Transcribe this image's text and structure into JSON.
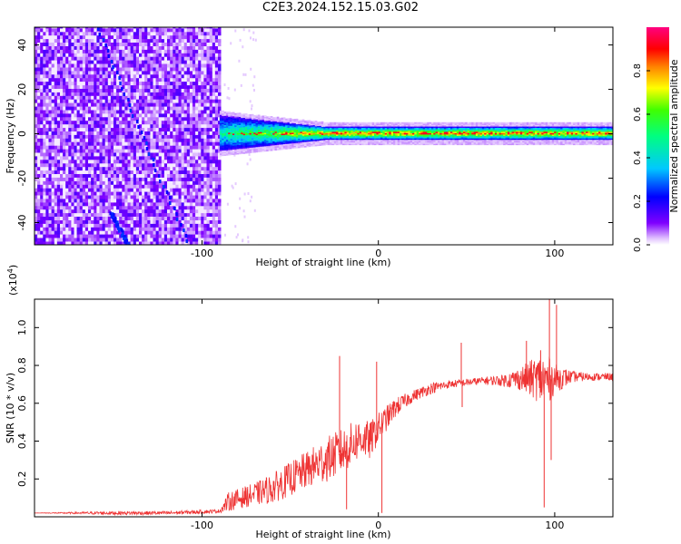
{
  "figure_title": "C2E3.2024.152.15.03.G02",
  "chart_data": [
    {
      "type": "heatmap",
      "title": "C2E3.2024.152.15.03.G02",
      "xlabel": "Height of straight line (km)",
      "ylabel": "Frequency (Hz)",
      "xlim": [
        -195,
        133
      ],
      "ylim": [
        -50,
        48
      ],
      "xticks": [
        -100,
        0,
        100
      ],
      "xtick_labels": [
        "-100",
        "0",
        "100"
      ],
      "yticks": [
        -40,
        -20,
        0,
        20,
        40
      ],
      "ytick_labels": [
        "-40",
        "-20",
        "0",
        "20",
        "40"
      ],
      "colorbar": {
        "label": "Normalized spectral amplitude",
        "range": [
          0,
          1
        ],
        "ticks": [
          0.0,
          0.2,
          0.4,
          0.6,
          0.8
        ],
        "tick_labels": [
          "0.0",
          "0.2",
          "0.4",
          "0.6",
          "0.8"
        ],
        "colormap": [
          "#ffffff",
          "#7f00ff",
          "#0000ff",
          "#00ffff",
          "#00ff00",
          "#ffff00",
          "#ff8000",
          "#ff0000",
          "#ff0080"
        ]
      },
      "regions": [
        {
          "name": "noise",
          "x_range": [
            -195,
            -90
          ],
          "f_range": [
            -50,
            48
          ],
          "amplitude": 0.05
        },
        {
          "name": "transition",
          "x_range": [
            -90,
            -30
          ],
          "f_range": [
            -8,
            8
          ],
          "amplitude": 0.4
        },
        {
          "name": "tone",
          "x_range": [
            -30,
            133
          ],
          "f_range": [
            -3,
            3
          ],
          "amplitude": 0.8
        }
      ],
      "dispersive_streaks": [
        {
          "from": [
            -160,
            48
          ],
          "to": [
            -108,
            -50
          ]
        },
        {
          "from": [
            -152,
            -35
          ],
          "to": [
            -142,
            -50
          ]
        }
      ]
    },
    {
      "type": "line",
      "xlabel": "Height of straight line (km)",
      "ylabel": "SNR (10 * v/v)",
      "y_multiplier_label": "(x10",
      "y_multiplier_exponent": "4",
      "y_multiplier_close": ")",
      "xlim": [
        -195,
        133
      ],
      "ylim": [
        0,
        1.15
      ],
      "xticks": [
        -100,
        0,
        100
      ],
      "xtick_labels": [
        "-100",
        "0",
        "100"
      ],
      "yticks": [
        0.2,
        0.4,
        0.6,
        0.8,
        1.0
      ],
      "ytick_labels": [
        "0.2",
        "0.4",
        "0.6",
        "0.8",
        "1.0"
      ],
      "color": "#ee3333",
      "x": [
        -195,
        -150,
        -120,
        -90,
        -85,
        -70,
        -60,
        -50,
        -40,
        -30,
        -20,
        -10,
        -5,
        0,
        10,
        20,
        30,
        40,
        50,
        60,
        70,
        80,
        90,
        95,
        100,
        110,
        120,
        133
      ],
      "y": [
        0.02,
        0.02,
        0.02,
        0.03,
        0.08,
        0.12,
        0.15,
        0.2,
        0.25,
        0.3,
        0.35,
        0.42,
        0.4,
        0.47,
        0.58,
        0.64,
        0.68,
        0.7,
        0.71,
        0.72,
        0.72,
        0.73,
        0.73,
        0.72,
        0.73,
        0.74,
        0.74,
        0.74
      ],
      "noise": [
        0.0,
        0.01,
        0.01,
        0.01,
        0.05,
        0.06,
        0.08,
        0.09,
        0.1,
        0.12,
        0.12,
        0.11,
        0.1,
        0.08,
        0.05,
        0.03,
        0.03,
        0.02,
        0.02,
        0.02,
        0.03,
        0.06,
        0.12,
        0.15,
        0.08,
        0.03,
        0.02,
        0.02
      ],
      "spikes": [
        {
          "x": -22,
          "y": 0.85
        },
        {
          "x": -18,
          "y": 0.04
        },
        {
          "x": -1,
          "y": 0.82
        },
        {
          "x": 2,
          "y": 0.02
        },
        {
          "x": 47,
          "y": 0.92
        },
        {
          "x": 47.5,
          "y": 0.58
        },
        {
          "x": 84,
          "y": 0.93
        },
        {
          "x": 92,
          "y": 0.88
        },
        {
          "x": 94,
          "y": 0.05
        },
        {
          "x": 97,
          "y": 1.15
        },
        {
          "x": 98,
          "y": 0.3
        },
        {
          "x": 101,
          "y": 1.12
        }
      ]
    }
  ]
}
